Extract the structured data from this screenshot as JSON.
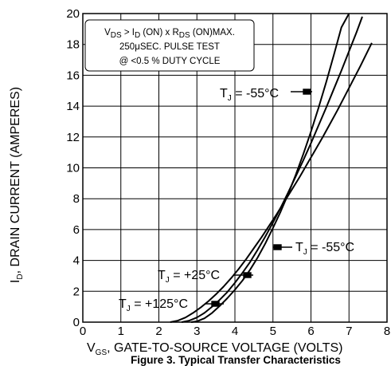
{
  "chart_data": {
    "type": "line",
    "title": "",
    "caption": "Figure 3. Typical Transfer Characteristics",
    "xlabel": {
      "main": "V",
      "sub": "GS",
      "rest": ", GATE-TO-SOURCE VOLTAGE (VOLTS)"
    },
    "ylabel": {
      "main": "I",
      "sub": "D",
      "rest": ", DRAIN CURRENT (AMPERES)"
    },
    "xlim": [
      0,
      8
    ],
    "ylim": [
      0,
      20
    ],
    "xticks": [
      "0",
      "1",
      "2",
      "3",
      "4",
      "5",
      "6",
      "7",
      "8"
    ],
    "yticks": [
      "0",
      "2",
      "4",
      "6",
      "8",
      "10",
      "12",
      "14",
      "16",
      "18",
      "20"
    ],
    "grid": true,
    "note": {
      "line1": {
        "a": "V",
        "a_sub": "DS",
        "b": " > I",
        "b_sub": "D",
        "c": " (ON) x  R",
        "c_sub": "DS",
        "d": " (ON)MAX."
      },
      "line2": "250μSEC. PULSE TEST",
      "line3": "@ <0.5 % DUTY CYCLE"
    },
    "series": [
      {
        "name": "T_J = -55°C",
        "x": [
          2.85,
          3.0,
          3.2,
          3.4,
          3.6,
          3.8,
          4.0,
          4.2,
          4.4,
          4.6,
          4.8,
          5.0,
          5.2,
          5.4,
          5.6,
          5.8,
          6.0,
          6.2,
          6.4,
          6.6,
          6.8,
          7.0
        ],
        "y": [
          0.0,
          0.05,
          0.25,
          0.6,
          1.05,
          1.55,
          2.1,
          2.7,
          3.4,
          4.2,
          5.1,
          6.1,
          7.15,
          8.3,
          9.55,
          10.9,
          12.35,
          13.9,
          15.55,
          17.3,
          19.1,
          20.0
        ]
      },
      {
        "name": "T_J = +25°C",
        "x": [
          2.6,
          2.8,
          3.0,
          3.2,
          3.4,
          3.6,
          3.8,
          4.0,
          4.2,
          4.4,
          4.6,
          4.8,
          5.0,
          5.2,
          5.4,
          5.6,
          5.8,
          6.0,
          6.2,
          6.4,
          6.6,
          6.8,
          7.0,
          7.2,
          7.35
        ],
        "y": [
          0.0,
          0.1,
          0.3,
          0.6,
          1.0,
          1.45,
          1.95,
          2.55,
          3.2,
          3.9,
          4.7,
          5.55,
          6.45,
          7.4,
          8.4,
          9.45,
          10.5,
          11.6,
          12.75,
          13.9,
          15.1,
          16.3,
          17.55,
          18.8,
          19.8
        ]
      },
      {
        "name": "T_J = +125°C",
        "x": [
          2.3,
          2.5,
          2.7,
          2.9,
          3.1,
          3.3,
          3.5,
          3.7,
          3.9,
          4.1,
          4.3,
          4.5,
          4.7,
          4.9,
          5.1,
          5.3,
          5.5,
          5.7,
          5.9,
          6.1,
          6.3,
          6.5,
          6.7,
          6.9,
          7.1,
          7.3,
          7.5,
          7.6
        ],
        "y": [
          0.0,
          0.1,
          0.3,
          0.6,
          0.95,
          1.35,
          1.8,
          2.3,
          2.85,
          3.45,
          4.1,
          4.8,
          5.5,
          6.25,
          7.0,
          7.8,
          8.6,
          9.4,
          10.25,
          11.1,
          11.95,
          12.85,
          13.75,
          14.7,
          15.65,
          16.6,
          17.6,
          18.1
        ]
      }
    ],
    "annotations": [
      {
        "pre": "T",
        "sub": "J",
        "post": " = -55°C"
      },
      {
        "pre": "T",
        "sub": "J",
        "post": " = -55°C"
      },
      {
        "pre": "T",
        "sub": "J",
        "post": " = +25°C"
      },
      {
        "pre": "T",
        "sub": "J",
        "post": " = +125°C"
      }
    ]
  }
}
